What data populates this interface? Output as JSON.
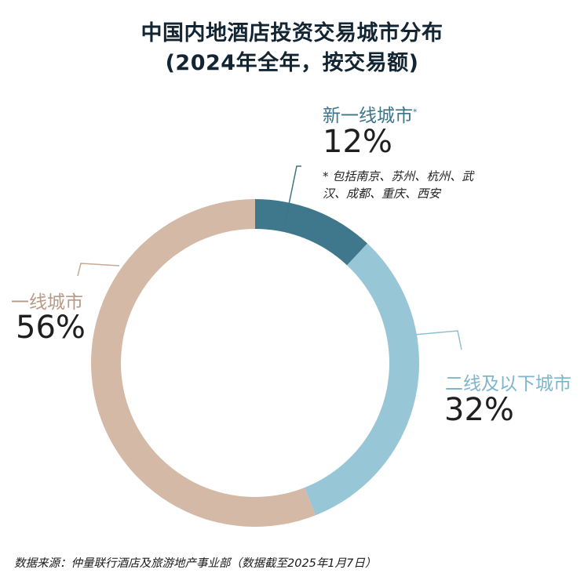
{
  "title": {
    "line1": "中国内地酒店投资交易城市分布",
    "line2": "(2024年全年，按交易额)"
  },
  "chart_data": {
    "type": "pie",
    "variant": "donut",
    "unit": "%",
    "slices": [
      {
        "name": "新一线城市",
        "value": 12,
        "color": "#3f788c",
        "label_color": "#3d7488"
      },
      {
        "name": "二线及以下城市",
        "value": 32,
        "color": "#97c6d6",
        "label_color": "#7fb5ca"
      },
      {
        "name": "一线城市",
        "value": 56,
        "color": "#d3b9a6",
        "label_color": "#b79a87"
      }
    ]
  },
  "labels": {
    "new_tier1": {
      "name": "新一线城市",
      "marker": "*",
      "pct": "12%"
    },
    "tier2": {
      "name": "二线及以下城市",
      "pct": "32%"
    },
    "tier1": {
      "name": "一线城市",
      "pct": "56%"
    }
  },
  "note": {
    "line1": "* 包括南京、苏州、杭州、武",
    "line2": "汉、成都、重庆、西安"
  },
  "source": "数据来源：仲量联行酒店及旅游地产事业部（数据截至2025年1月7日）"
}
